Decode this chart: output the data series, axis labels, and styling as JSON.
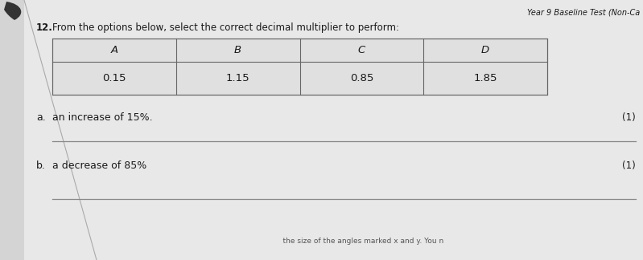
{
  "title": "Year 9 Baseline Test (Non-Ca",
  "question_number": "12.",
  "question_text": "From the options below, select the correct decimal multiplier to perform:",
  "table_headers": [
    "A",
    "B",
    "C",
    "D"
  ],
  "table_values": [
    "0.15",
    "1.15",
    "0.85",
    "1.85"
  ],
  "part_a_label": "a.",
  "part_a_text": "an increase of 15%.",
  "part_a_marks": "(1)",
  "part_b_label": "b.",
  "part_b_text": "a decrease of 85%",
  "part_b_marks": "(1)",
  "bg_color": "#d4d4d4",
  "paper_color": "#e8e8e8",
  "table_bg": "#e0e0e0",
  "text_color": "#1a1a1a",
  "line_color": "#888888",
  "table_line_color": "#666666",
  "swoosh_color": "#333333"
}
